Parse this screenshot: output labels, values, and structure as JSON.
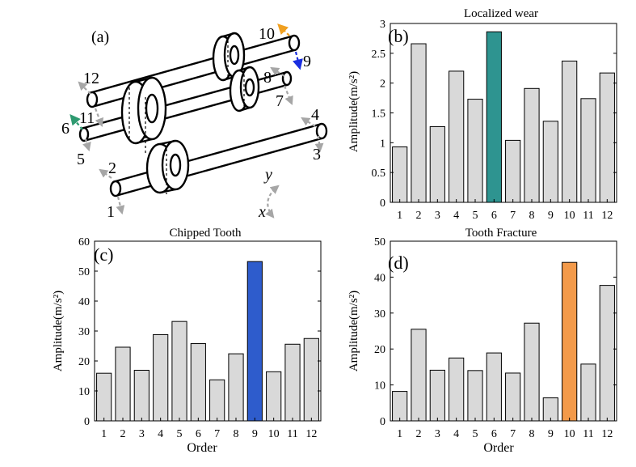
{
  "colors": {
    "bar_default": "#d9d9d9",
    "bar_edge": "#000000",
    "arrow_gray": "#a6a6a6",
    "highlight_b": "#2e9490",
    "highlight_c": "#2e5ccc",
    "highlight_d": "#f39a4a",
    "arrow_orange": "#f0a020",
    "arrow_blue": "#1a2ee0",
    "arrow_green": "#2e9a70"
  },
  "panel_a": {
    "label": "(a)",
    "axis_x": "x",
    "axis_y": "y",
    "point_labels": [
      "1",
      "2",
      "3",
      "4",
      "5",
      "6",
      "7",
      "8",
      "9",
      "10",
      "11",
      "12"
    ]
  },
  "chart_data": [
    {
      "panel": "(b)",
      "type": "bar",
      "title": "Localized wear",
      "xlabel": "",
      "ylabel": "Amplitude(m/s²)",
      "categories": [
        "1",
        "2",
        "3",
        "4",
        "5",
        "6",
        "7",
        "8",
        "9",
        "10",
        "11",
        "12"
      ],
      "values": [
        0.93,
        2.66,
        1.27,
        2.2,
        1.73,
        2.86,
        1.04,
        1.91,
        1.36,
        2.37,
        1.74,
        2.17
      ],
      "highlight_index": 5,
      "highlight_color": "#2e9490",
      "ylim": [
        0,
        3
      ],
      "yticks": [
        "0",
        "0.5",
        "1",
        "1.5",
        "2",
        "2.5",
        "3"
      ],
      "ytick_values": [
        0,
        0.5,
        1,
        1.5,
        2,
        2.5,
        3
      ],
      "grid": false
    },
    {
      "panel": "(c)",
      "type": "bar",
      "title": "Chipped Tooth",
      "xlabel": "Order",
      "ylabel": "Amplitude(m/s²)",
      "categories": [
        "1",
        "2",
        "3",
        "4",
        "5",
        "6",
        "7",
        "8",
        "9",
        "10",
        "11",
        "12"
      ],
      "values": [
        15.9,
        24.6,
        16.9,
        28.8,
        33.2,
        25.8,
        13.7,
        22.4,
        53.2,
        16.4,
        25.6,
        27.5
      ],
      "highlight_index": 8,
      "highlight_color": "#2e5ccc",
      "ylim": [
        0,
        60
      ],
      "yticks": [
        "0",
        "10",
        "20",
        "30",
        "40",
        "50",
        "60"
      ],
      "ytick_values": [
        0,
        10,
        20,
        30,
        40,
        50,
        60
      ],
      "grid": false
    },
    {
      "panel": "(d)",
      "type": "bar",
      "title": "Tooth Fracture",
      "xlabel": "Order",
      "ylabel": "Amplitude(m/s²)",
      "categories": [
        "1",
        "2",
        "3",
        "4",
        "5",
        "6",
        "7",
        "8",
        "9",
        "10",
        "11",
        "12"
      ],
      "values": [
        8.2,
        25.5,
        14.1,
        17.5,
        14.0,
        18.9,
        13.3,
        27.2,
        6.4,
        44.1,
        15.8,
        37.7
      ],
      "highlight_index": 9,
      "highlight_color": "#f39a4a",
      "ylim": [
        0,
        50
      ],
      "yticks": [
        "0",
        "10",
        "20",
        "30",
        "40",
        "50"
      ],
      "ytick_values": [
        0,
        10,
        20,
        30,
        40,
        50
      ],
      "grid": false
    }
  ]
}
